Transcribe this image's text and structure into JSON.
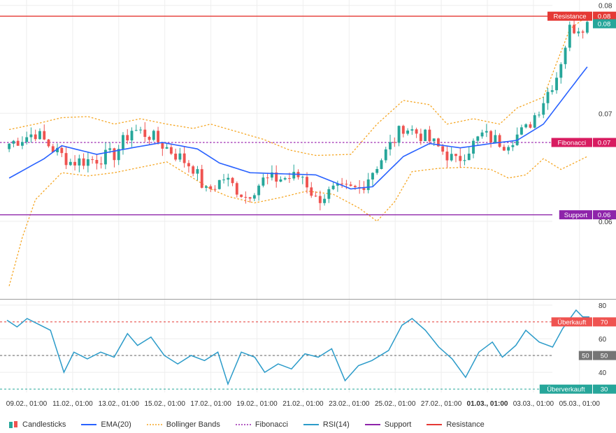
{
  "chart_data": {
    "type": "candlestick",
    "price_axis": {
      "ticks": [
        0.08,
        0.07,
        0.06
      ]
    },
    "price_range": [
      0.053,
      0.0805
    ],
    "rsi_axis": {
      "ticks": [
        80,
        60,
        50,
        40
      ]
    },
    "rsi_range": [
      28,
      82
    ],
    "x_tick_labels": [
      "09.02., 01:00",
      "11.02., 01:00",
      "13.02., 01:00",
      "15.02., 01:00",
      "17.02., 01:00",
      "19.02., 01:00",
      "21.02., 01:00",
      "23.02., 01:00",
      "25.02., 01:00",
      "27.02., 01:00",
      "01.03., 01:00",
      "03.03., 01:00",
      "05.03., 01:00"
    ],
    "levels": {
      "resistance": {
        "label": "Resistance",
        "value_label": "0.08",
        "value": 0.079
      },
      "fibonacci": {
        "label": "Fibonacci",
        "value_label": "0.07",
        "value": 0.0673
      },
      "support": {
        "label": "Support",
        "value_label": "0.06",
        "value": 0.0606
      },
      "last_price": {
        "value_label": "0.08",
        "value": 0.0783
      }
    },
    "rsi_levels": {
      "overbought": {
        "label": "Überkauft",
        "value_label": "70",
        "value": 70
      },
      "middle": {
        "label": "50",
        "value_label": "50",
        "value": 50
      },
      "oversold": {
        "label": "Überverkauft",
        "value_label": "30",
        "value": 30
      }
    },
    "anchors": {
      "close": [
        [
          0,
          0.0672
        ],
        [
          6,
          0.0682
        ],
        [
          10,
          0.0667
        ],
        [
          14,
          0.0655
        ],
        [
          19,
          0.0657
        ],
        [
          24,
          0.0662
        ],
        [
          28,
          0.0685
        ],
        [
          32,
          0.068
        ],
        [
          37,
          0.0665
        ],
        [
          42,
          0.065
        ],
        [
          45,
          0.0627
        ],
        [
          49,
          0.064
        ],
        [
          54,
          0.0623
        ],
        [
          58,
          0.0638
        ],
        [
          63,
          0.064
        ],
        [
          67,
          0.0642
        ],
        [
          70,
          0.062
        ],
        [
          74,
          0.0628
        ],
        [
          80,
          0.063
        ],
        [
          85,
          0.0658
        ],
        [
          90,
          0.0688
        ],
        [
          95,
          0.0678
        ],
        [
          99,
          0.0665
        ],
        [
          102,
          0.0655
        ],
        [
          108,
          0.068
        ],
        [
          113,
          0.0672
        ],
        [
          118,
          0.0685
        ],
        [
          121,
          0.0705
        ],
        [
          125,
          0.0735
        ],
        [
          128,
          0.0778
        ],
        [
          132,
          0.0783
        ]
      ],
      "ema": [
        [
          0,
          0.064
        ],
        [
          8,
          0.0658
        ],
        [
          12,
          0.067
        ],
        [
          20,
          0.0662
        ],
        [
          28,
          0.0668
        ],
        [
          35,
          0.0673
        ],
        [
          43,
          0.0667
        ],
        [
          48,
          0.0654
        ],
        [
          55,
          0.0645
        ],
        [
          62,
          0.0644
        ],
        [
          70,
          0.0643
        ],
        [
          78,
          0.063
        ],
        [
          83,
          0.0632
        ],
        [
          90,
          0.066
        ],
        [
          96,
          0.0672
        ],
        [
          103,
          0.0668
        ],
        [
          110,
          0.0672
        ],
        [
          116,
          0.0675
        ],
        [
          122,
          0.069
        ],
        [
          128,
          0.0722
        ],
        [
          132,
          0.0743
        ]
      ],
      "bb_upper": [
        [
          0,
          0.0685
        ],
        [
          6,
          0.069
        ],
        [
          12,
          0.0696
        ],
        [
          18,
          0.0697
        ],
        [
          24,
          0.069
        ],
        [
          30,
          0.0695
        ],
        [
          36,
          0.069
        ],
        [
          42,
          0.0686
        ],
        [
          46,
          0.069
        ],
        [
          52,
          0.0683
        ],
        [
          58,
          0.0676
        ],
        [
          64,
          0.0666
        ],
        [
          70,
          0.0661
        ],
        [
          78,
          0.0662
        ],
        [
          84,
          0.069
        ],
        [
          90,
          0.0712
        ],
        [
          96,
          0.0708
        ],
        [
          100,
          0.069
        ],
        [
          106,
          0.0695
        ],
        [
          112,
          0.069
        ],
        [
          116,
          0.0705
        ],
        [
          122,
          0.0715
        ],
        [
          128,
          0.0778
        ],
        [
          132,
          0.079
        ]
      ],
      "bb_lower": [
        [
          0,
          0.054
        ],
        [
          3,
          0.0585
        ],
        [
          6,
          0.062
        ],
        [
          12,
          0.0645
        ],
        [
          18,
          0.0642
        ],
        [
          24,
          0.0645
        ],
        [
          30,
          0.065
        ],
        [
          36,
          0.0655
        ],
        [
          42,
          0.064
        ],
        [
          46,
          0.063
        ],
        [
          50,
          0.0623
        ],
        [
          56,
          0.0617
        ],
        [
          62,
          0.0622
        ],
        [
          68,
          0.0628
        ],
        [
          74,
          0.0625
        ],
        [
          80,
          0.0612
        ],
        [
          84,
          0.06
        ],
        [
          88,
          0.0618
        ],
        [
          92,
          0.0646
        ],
        [
          98,
          0.0649
        ],
        [
          104,
          0.065
        ],
        [
          110,
          0.0648
        ],
        [
          114,
          0.064
        ],
        [
          118,
          0.0643
        ],
        [
          122,
          0.0658
        ],
        [
          126,
          0.0648
        ],
        [
          132,
          0.066
        ]
      ],
      "rsi": [
        [
          0,
          71
        ],
        [
          3,
          67
        ],
        [
          6,
          72
        ],
        [
          9,
          69
        ],
        [
          13,
          65
        ],
        [
          17,
          40
        ],
        [
          20,
          52
        ],
        [
          24,
          48
        ],
        [
          28,
          52
        ],
        [
          32,
          49
        ],
        [
          36,
          63
        ],
        [
          39,
          56
        ],
        [
          43,
          61
        ],
        [
          47,
          50
        ],
        [
          51,
          45
        ],
        [
          55,
          50
        ],
        [
          59,
          47
        ],
        [
          63,
          52
        ],
        [
          66,
          33
        ],
        [
          70,
          52
        ],
        [
          74,
          49
        ],
        [
          77,
          40
        ],
        [
          81,
          45
        ],
        [
          85,
          42
        ],
        [
          89,
          51
        ],
        [
          93,
          49
        ],
        [
          97,
          54
        ],
        [
          101,
          35
        ],
        [
          105,
          44
        ],
        [
          109,
          47
        ],
        [
          114,
          53
        ],
        [
          118,
          68
        ],
        [
          121,
          72
        ],
        [
          125,
          65
        ],
        [
          129,
          55
        ],
        [
          133,
          48
        ],
        [
          137,
          37
        ],
        [
          141,
          52
        ],
        [
          145,
          58
        ],
        [
          148,
          49
        ],
        [
          152,
          56
        ],
        [
          155,
          65
        ],
        [
          159,
          58
        ],
        [
          163,
          55
        ],
        [
          166,
          66
        ],
        [
          170,
          77
        ],
        [
          172,
          73
        ],
        [
          174,
          73
        ]
      ]
    },
    "series_count": 133
  },
  "legend": {
    "candlesticks": "Candlesticks",
    "ema": "EMA(20)",
    "bollinger": "Bollinger Bands",
    "fibonacci": "Fibonacci",
    "rsi": "RSI(14)",
    "support": "Support",
    "resistance": "Resistance"
  },
  "colors": {
    "up": "#26a69a",
    "down": "#ef5350",
    "ema": "#2962ff",
    "bollinger": "#f5a623",
    "fibonacci": "#9c27b0",
    "rsi": "#2b9bc9",
    "support": "#8e24aa",
    "resistance": "#e53935",
    "fib_tag": "#d81b60",
    "grey_tag": "#757575",
    "green_tag": "#26a69a"
  }
}
